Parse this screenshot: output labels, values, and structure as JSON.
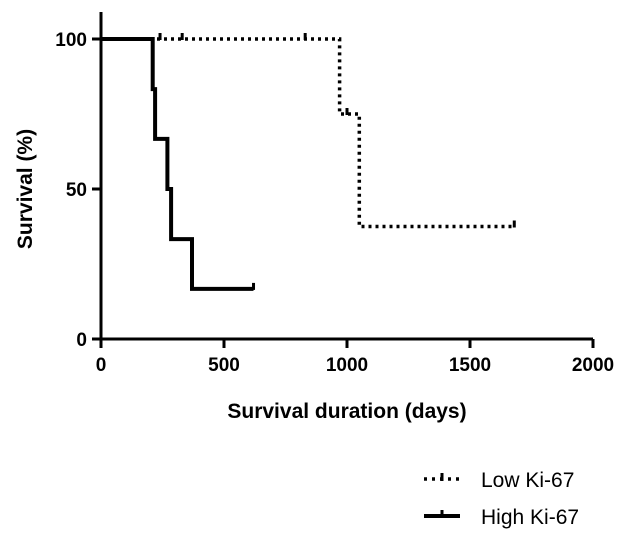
{
  "chart_data": {
    "type": "line",
    "subtype": "kaplan-meier step",
    "xlabel": "Survival duration (days)",
    "ylabel": "Survival (%)",
    "xlim": [
      0,
      2000
    ],
    "ylim": [
      0,
      100
    ],
    "xticks": [
      0,
      500,
      1000,
      1500,
      2000
    ],
    "yticks": [
      0,
      50,
      100
    ],
    "grid": false,
    "legend_position": "bottom-right",
    "series": [
      {
        "name": "Low Ki-67",
        "style": "dotted",
        "color": "#000000",
        "steps": [
          [
            0,
            100
          ],
          [
            970,
            100
          ],
          [
            970,
            75
          ],
          [
            1050,
            75
          ],
          [
            1050,
            37.5
          ],
          [
            1680,
            37.5
          ]
        ],
        "censored": [
          [
            240,
            100
          ],
          [
            330,
            100
          ],
          [
            830,
            100
          ],
          [
            1000,
            75
          ],
          [
            1680,
            37.5
          ]
        ]
      },
      {
        "name": "High Ki-67",
        "style": "solid",
        "color": "#000000",
        "steps": [
          [
            0,
            100
          ],
          [
            210,
            100
          ],
          [
            210,
            83.3
          ],
          [
            220,
            83.3
          ],
          [
            220,
            66.7
          ],
          [
            270,
            66.7
          ],
          [
            270,
            50
          ],
          [
            285,
            50
          ],
          [
            285,
            33.3
          ],
          [
            370,
            33.3
          ],
          [
            370,
            16.7
          ],
          [
            620,
            16.7
          ]
        ],
        "censored": [
          [
            620,
            16.7
          ]
        ]
      }
    ]
  }
}
